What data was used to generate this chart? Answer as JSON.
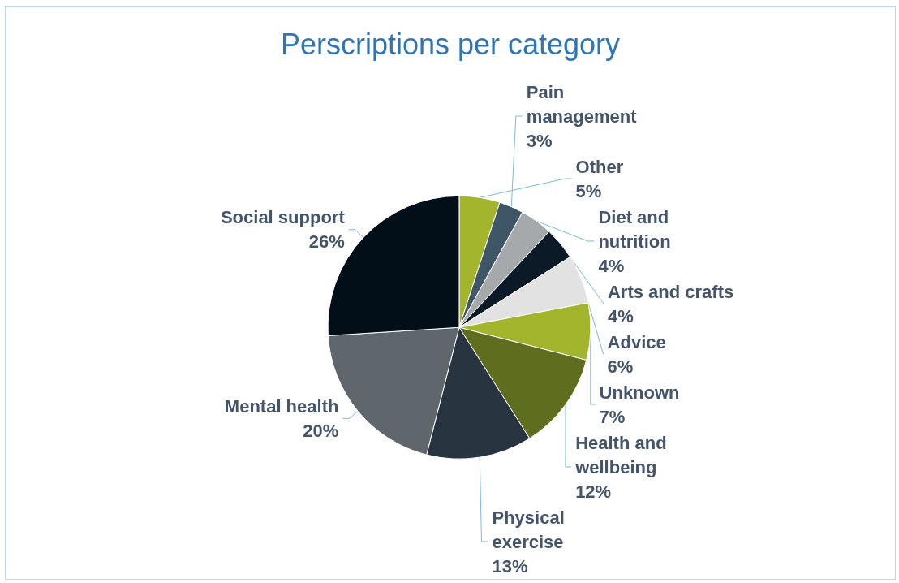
{
  "chart_data": {
    "type": "pie",
    "title": "Perscriptions per category",
    "categories": [
      "Other",
      "Pain\nmanagement",
      "Diet and\nnutrition",
      "Arts and crafts",
      "Advice",
      "Unknown",
      "Health and\nwellbeing",
      "Physical\nexercise",
      "Mental health",
      "Social support"
    ],
    "values": [
      5,
      3,
      4,
      4,
      6,
      7,
      12,
      13,
      20,
      26
    ],
    "value_labels": [
      "5%",
      "3%",
      "4%",
      "4%",
      "6%",
      "7%",
      "12%",
      "13%",
      "20%",
      "26%"
    ],
    "colors": [
      "#a3b52c",
      "#3f5666",
      "#a5a9ab",
      "#0b1a26",
      "#e2e2e2",
      "#a3b52c",
      "#5f6d1e",
      "#283540",
      "#5f676d",
      "#030f18"
    ],
    "legend": false
  }
}
